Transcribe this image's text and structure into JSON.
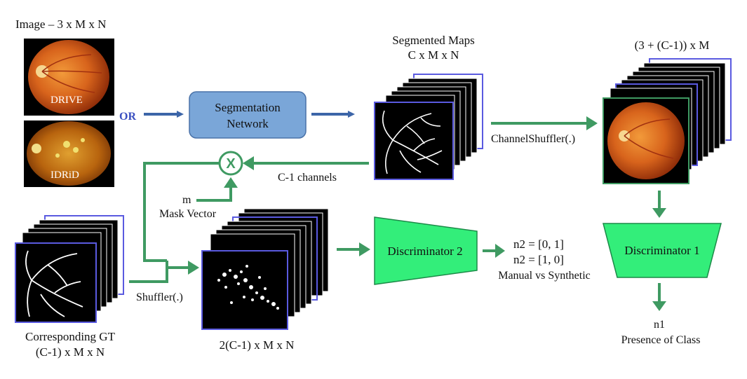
{
  "labels": {
    "image_title": "Image – 3 x M x N",
    "drive": "DRIVE",
    "idrid": "IDRiD",
    "or": "OR",
    "seg_net_line1": "Segmentation",
    "seg_net_line2": "Network",
    "seg_maps_line1": "Segmented Maps",
    "seg_maps_line2": "C x M x N",
    "top_right_dims": "(3 + (C-1)) x M",
    "channel_shuffler": "ChannelShuffler(.)",
    "c1_channels": "C-1 channels",
    "m": "m",
    "mask_vector": "Mask Vector",
    "multiply_symbol": "X",
    "gt_line1": "Corresponding GT",
    "gt_line2": "(C-1) x M x N",
    "shuffler": "Shuffler(.)",
    "stack2_dims": "2(C-1) x M x N",
    "disc2": "Discriminator 2",
    "n2_a": "n2 = [0, 1]",
    "n2_b": "n2 = [1, 0]",
    "manual_vs_synth": "Manual vs Synthetic",
    "disc1": "Discriminator 1",
    "n1": "n1",
    "presence": "Presence of Class"
  },
  "colors": {
    "blue_arrow": "#3c65a8",
    "green_arrow": "#3f9a62",
    "seg_box_fill": "#7aa6d8",
    "seg_box_stroke": "#4a72a8",
    "disc_fill": "#33ee7a",
    "disc_stroke": "#1c8a48",
    "stack_outline": "#5a5ae0",
    "fundus_orange": "#d8641c"
  }
}
